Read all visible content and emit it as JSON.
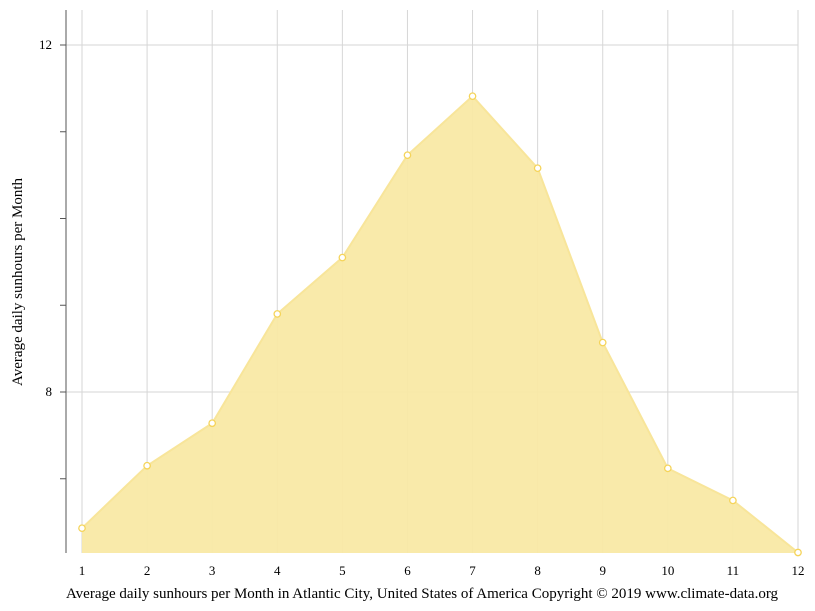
{
  "chart_data": {
    "type": "area",
    "title": "",
    "xlabel": "",
    "ylabel": "Average daily sunhours per Month",
    "x": [
      1,
      2,
      3,
      4,
      5,
      6,
      7,
      8,
      9,
      10,
      11,
      12
    ],
    "y_tick_labels": [
      "8",
      "12"
    ],
    "ylim": [
      6.15,
      12.4
    ],
    "grid": true,
    "legend": "none",
    "series": [
      {
        "values": [
          6.43,
          7.15,
          7.64,
          8.9,
          9.55,
          10.73,
          11.41,
          10.58,
          8.57,
          7.12,
          6.75,
          6.15
        ]
      }
    ],
    "colors": {
      "fill": "#f9e9a5",
      "line": "#f8e59a",
      "marker_stroke": "#f5d45a",
      "marker_fill": "#ffffff",
      "grid": "#d6d6d6",
      "axis": "#555555"
    },
    "caption": "Average daily sunhours per Month in Atlantic City, United States of America Copyright © 2019 www.climate-data.org"
  }
}
